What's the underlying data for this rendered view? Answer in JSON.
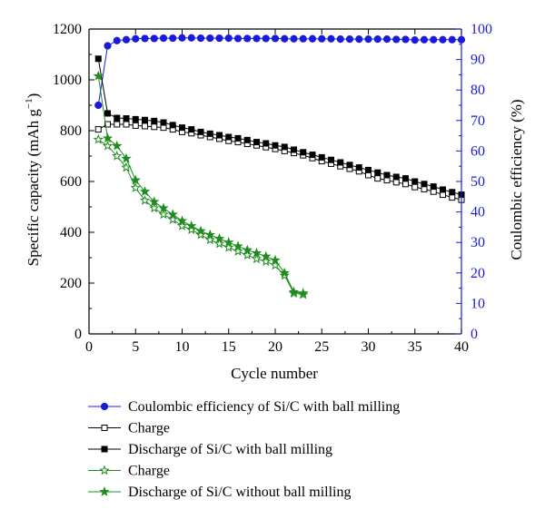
{
  "colors": {
    "ce": "#1a1adc",
    "charge_bm": "#000000",
    "discharge_bm": "#000000",
    "no_bm": "#1e8c1e"
  },
  "chart_data": {
    "type": "line",
    "xlabel": "Cycle number",
    "ylabel": "Specific capacity (mAh g",
    "ylabel_sup": "−1",
    "ylabel_close": ")",
    "y2label": "Coulombic efficiency (%)",
    "xlim": [
      0,
      40
    ],
    "ylim": [
      0,
      1200
    ],
    "y2lim": [
      0,
      100
    ],
    "xticks": [
      0,
      5,
      10,
      15,
      20,
      25,
      30,
      35,
      40
    ],
    "yticks": [
      0,
      200,
      400,
      600,
      800,
      1000,
      1200
    ],
    "y2ticks": [
      0,
      10,
      20,
      30,
      40,
      50,
      60,
      70,
      80,
      90,
      100
    ],
    "grid": false,
    "legend_position": "bottom",
    "series": [
      {
        "name": "Coulombic efficiency of Si/C with ball milling",
        "axis": "right",
        "color": "#1a1adc",
        "marker": "circle",
        "filled": true,
        "x": [
          1,
          2,
          3,
          4,
          5,
          6,
          7,
          8,
          9,
          10,
          11,
          12,
          13,
          14,
          15,
          16,
          17,
          18,
          19,
          20,
          21,
          22,
          23,
          24,
          25,
          26,
          27,
          28,
          29,
          30,
          31,
          32,
          33,
          34,
          35,
          36,
          37,
          38,
          39,
          40
        ],
        "y": [
          75,
          94.5,
          96.2,
          96.5,
          96.8,
          96.9,
          96.9,
          97,
          97,
          97.1,
          97.1,
          97,
          97,
          97,
          97,
          96.9,
          96.9,
          96.9,
          96.9,
          96.9,
          96.8,
          96.8,
          96.8,
          96.8,
          96.8,
          96.8,
          96.7,
          96.7,
          96.7,
          96.7,
          96.7,
          96.7,
          96.6,
          96.6,
          96.4,
          96.5,
          96.5,
          96.5,
          96.5,
          96.5
        ]
      },
      {
        "name": "Charge",
        "axis": "left",
        "color": "#000000",
        "marker": "square",
        "filled": false,
        "x": [
          1,
          2,
          3,
          4,
          5,
          6,
          7,
          8,
          9,
          10,
          11,
          12,
          13,
          14,
          15,
          16,
          17,
          18,
          19,
          20,
          21,
          22,
          23,
          24,
          25,
          26,
          27,
          28,
          29,
          30,
          31,
          32,
          33,
          34,
          35,
          36,
          37,
          38,
          39,
          40
        ],
        "y": [
          805,
          825,
          825,
          825,
          820,
          818,
          815,
          812,
          805,
          795,
          790,
          782,
          775,
          768,
          760,
          755,
          748,
          742,
          735,
          728,
          720,
          712,
          703,
          692,
          680,
          670,
          660,
          650,
          640,
          625,
          612,
          605,
          597,
          590,
          578,
          570,
          560,
          548,
          537,
          528
        ]
      },
      {
        "name": "Discharge of Si/C with ball milling",
        "axis": "left",
        "color": "#000000",
        "marker": "square",
        "filled": true,
        "x": [
          1,
          2,
          3,
          4,
          5,
          6,
          7,
          8,
          9,
          10,
          11,
          12,
          13,
          14,
          15,
          16,
          17,
          18,
          19,
          20,
          21,
          22,
          23,
          24,
          25,
          26,
          27,
          28,
          29,
          30,
          31,
          32,
          33,
          34,
          35,
          36,
          37,
          38,
          39,
          40
        ],
        "y": [
          1083,
          868,
          850,
          848,
          845,
          842,
          838,
          832,
          822,
          812,
          805,
          795,
          788,
          782,
          775,
          770,
          763,
          755,
          750,
          742,
          736,
          725,
          715,
          705,
          695,
          685,
          675,
          665,
          655,
          645,
          635,
          625,
          618,
          612,
          600,
          590,
          580,
          568,
          558,
          548
        ]
      },
      {
        "name": "Charge",
        "axis": "left",
        "color": "#1e8c1e",
        "marker": "star",
        "filled": false,
        "x": [
          1,
          2,
          3,
          4,
          5,
          6,
          7,
          8,
          9,
          10,
          11,
          12,
          13,
          14,
          15,
          16,
          17,
          18,
          19,
          20,
          21,
          22,
          23
        ],
        "y": [
          765,
          740,
          700,
          655,
          575,
          525,
          495,
          470,
          450,
          425,
          410,
          390,
          370,
          355,
          340,
          325,
          310,
          295,
          285,
          270,
          230,
          160,
          155
        ]
      },
      {
        "name": "Discharge of Si/C without ball milling",
        "axis": "left",
        "color": "#1e8c1e",
        "marker": "star",
        "filled": true,
        "x": [
          1,
          2,
          3,
          4,
          5,
          6,
          7,
          8,
          9,
          10,
          11,
          12,
          13,
          14,
          15,
          16,
          17,
          18,
          19,
          20,
          21,
          22,
          23
        ],
        "y": [
          1015,
          770,
          740,
          690,
          605,
          560,
          520,
          495,
          470,
          445,
          425,
          405,
          390,
          375,
          360,
          345,
          330,
          318,
          305,
          290,
          240,
          165,
          160
        ]
      }
    ]
  }
}
